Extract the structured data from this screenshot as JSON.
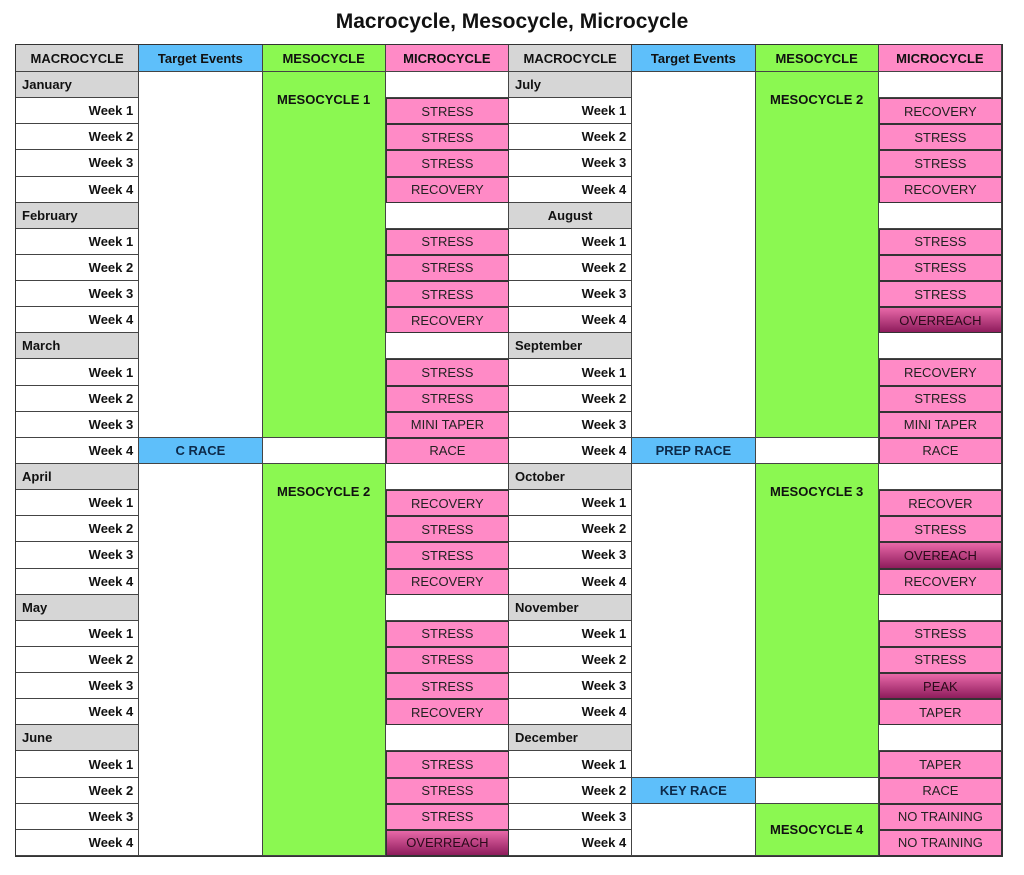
{
  "title": "Macrocycle, Mesocycle, Microcycle",
  "headers": [
    "MACROCYCLE",
    "Target Events",
    "MESOCYCLE",
    "MICROCYCLE"
  ],
  "colors": {
    "macro_header": "#d6d6d6",
    "events": "#5ebffa",
    "meso": "#8bf851",
    "micro": "#ff8ac6",
    "overreach": "#8e1c5c"
  },
  "halves": [
    {
      "months": [
        {
          "name": "January",
          "weeks": [
            {
              "label": "Week 1",
              "micro": "STRESS"
            },
            {
              "label": "Week 2",
              "micro": "STRESS"
            },
            {
              "label": "Week 3",
              "micro": "STRESS"
            },
            {
              "label": "Week 4",
              "micro": "RECOVERY"
            }
          ]
        },
        {
          "name": "February",
          "weeks": [
            {
              "label": "Week 1",
              "micro": "STRESS"
            },
            {
              "label": "Week 2",
              "micro": "STRESS"
            },
            {
              "label": "Week 3",
              "micro": "STRESS"
            },
            {
              "label": "Week 4",
              "micro": "RECOVERY"
            }
          ]
        },
        {
          "name": "March",
          "weeks": [
            {
              "label": "Week 1",
              "micro": "STRESS"
            },
            {
              "label": "Week 2",
              "micro": "STRESS"
            },
            {
              "label": "Week 3",
              "micro": "MINI TAPER"
            },
            {
              "label": "Week 4",
              "micro": "RACE",
              "event": "C RACE"
            }
          ]
        },
        {
          "name": "April",
          "weeks": [
            {
              "label": "Week 1",
              "micro": "RECOVERY"
            },
            {
              "label": "Week 2",
              "micro": "STRESS"
            },
            {
              "label": "Week 3",
              "micro": "STRESS"
            },
            {
              "label": "Week 4",
              "micro": "RECOVERY"
            }
          ]
        },
        {
          "name": "May",
          "weeks": [
            {
              "label": "Week 1",
              "micro": "STRESS"
            },
            {
              "label": "Week 2",
              "micro": "STRESS"
            },
            {
              "label": "Week 3",
              "micro": "STRESS"
            },
            {
              "label": "Week 4",
              "micro": "RECOVERY"
            }
          ]
        },
        {
          "name": "June",
          "weeks": [
            {
              "label": "Week 1",
              "micro": "STRESS"
            },
            {
              "label": "Week 2",
              "micro": "STRESS"
            },
            {
              "label": "Week 3",
              "micro": "STRESS"
            },
            {
              "label": "Week 4",
              "micro": "OVERREACH",
              "intense": true
            }
          ]
        }
      ],
      "mesocycles": [
        {
          "label": "MESOCYCLE 1",
          "from": [
            "January",
            null
          ],
          "to": [
            "March",
            "Week 3"
          ]
        },
        {
          "label": "MESOCYCLE 2",
          "from": [
            "April",
            null
          ],
          "to": [
            "June",
            "Week 4"
          ]
        }
      ]
    },
    {
      "months": [
        {
          "name": "July",
          "weeks": [
            {
              "label": "Week 1",
              "micro": "RECOVERY"
            },
            {
              "label": "Week 2",
              "micro": "STRESS"
            },
            {
              "label": "Week 3",
              "micro": "STRESS"
            },
            {
              "label": "Week 4",
              "micro": "RECOVERY"
            }
          ]
        },
        {
          "name": "August",
          "weeks": [
            {
              "label": "Week 1",
              "micro": "STRESS"
            },
            {
              "label": "Week 2",
              "micro": "STRESS"
            },
            {
              "label": "Week 3",
              "micro": "STRESS"
            },
            {
              "label": "Week 4",
              "micro": "OVERREACH",
              "intense": true
            }
          ]
        },
        {
          "name": "September",
          "weeks": [
            {
              "label": "Week 1",
              "micro": "RECOVERY"
            },
            {
              "label": "Week 2",
              "micro": "STRESS"
            },
            {
              "label": "Week 3",
              "micro": "MINI TAPER"
            },
            {
              "label": "Week 4",
              "micro": "RACE",
              "event": "PREP RACE"
            }
          ]
        },
        {
          "name": "October",
          "weeks": [
            {
              "label": "Week 1",
              "micro": "RECOVER"
            },
            {
              "label": "Week 2",
              "micro": "STRESS"
            },
            {
              "label": "Week 3",
              "micro": "OVEREACH",
              "intense": true
            },
            {
              "label": "Week 4",
              "micro": "RECOVERY"
            }
          ]
        },
        {
          "name": "November",
          "weeks": [
            {
              "label": "Week 1",
              "micro": "STRESS"
            },
            {
              "label": "Week 2",
              "micro": "STRESS"
            },
            {
              "label": "Week 3",
              "micro": "PEAK",
              "intense": true
            },
            {
              "label": "Week 4",
              "micro": "TAPER"
            }
          ]
        },
        {
          "name": "December",
          "weeks": [
            {
              "label": "Week 1",
              "micro": "TAPER"
            },
            {
              "label": "Week 2",
              "micro": "RACE",
              "event": "KEY RACE"
            },
            {
              "label": "Week 3",
              "micro": "NO TRAINING"
            },
            {
              "label": "Week 4",
              "micro": "NO TRAINING"
            }
          ]
        }
      ],
      "mesocycles": [
        {
          "label": "MESOCYCLE 2",
          "from": [
            "July",
            null
          ],
          "to": [
            "September",
            "Week 3"
          ]
        },
        {
          "label": "MESOCYCLE 3",
          "from": [
            "October",
            null
          ],
          "to": [
            "December",
            "Week 1"
          ]
        },
        {
          "label": "MESOCYCLE 4",
          "from": [
            "December",
            "Week 3"
          ],
          "to": [
            "December",
            "Week 4"
          ]
        }
      ]
    }
  ]
}
